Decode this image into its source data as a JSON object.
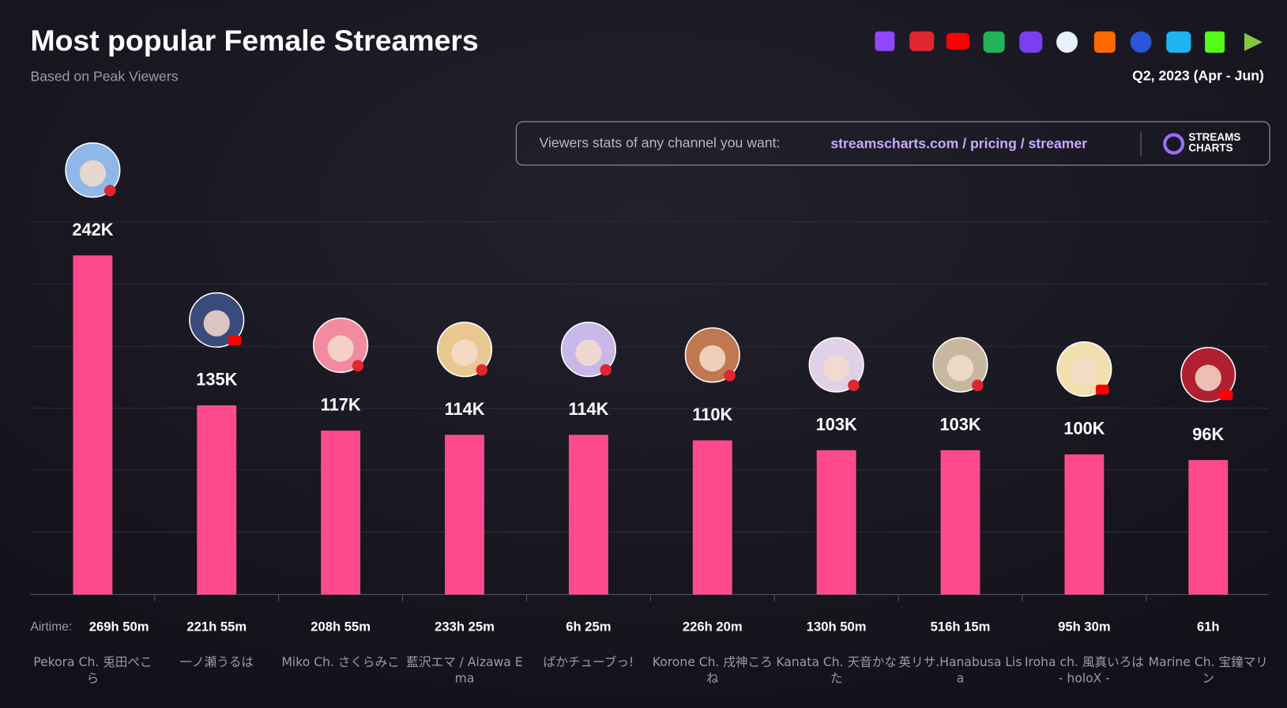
{
  "chart_data": {
    "type": "bar",
    "title": "Most popular Female Streamers",
    "subtitle": "Based on Peak Viewers",
    "period": "Q2, 2023 (Apr - Jun)",
    "promo_text": "Viewers stats of any channel you want:",
    "promo_link": "streamscharts.com / pricing / streamer",
    "brand": "STREAMS CHARTS",
    "categories": [
      "Pekora Ch. 兎田ぺこら",
      "一ノ瀬うるは",
      "Miko Ch. さくらみこ",
      "藍沢エマ / Aizawa Ema",
      "ぱかチューブっ!",
      "Korone Ch. 戌神ころね",
      "Kanata Ch. 天音かなた",
      "英リサ.Hanabusa Lisa",
      "Iroha ch. 風真いろは - holoX -",
      "Marine Ch. 宝鐘マリン"
    ],
    "values": [
      242000,
      135000,
      117000,
      114000,
      114000,
      110000,
      103000,
      103000,
      100000,
      96000
    ],
    "value_labels": [
      "242K",
      "135K",
      "117K",
      "114K",
      "114K",
      "110K",
      "103K",
      "103K",
      "100K",
      "96K"
    ],
    "airtime_label": "Airtime:",
    "airtime": [
      "269h 50m",
      "221h 55m",
      "208h 55m",
      "233h 25m",
      "6h 25m",
      "226h 20m",
      "130h 50m",
      "516h 15m",
      "95h 30m",
      "61h"
    ],
    "color": "#ff4b8c",
    "ylim": [
      0,
      266000
    ]
  }
}
